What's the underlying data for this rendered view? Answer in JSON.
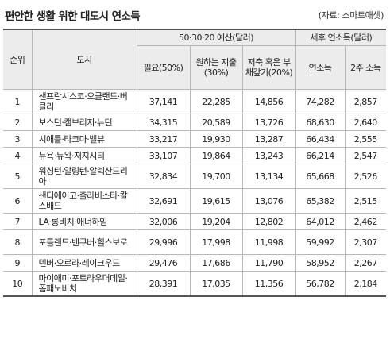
{
  "title": "편안한 생활 위한 대도시 연소득",
  "source": "(자료: 스마트애셋)",
  "headers": {
    "rank": "순위",
    "city": "도시",
    "group_budget": "50·30·20 예산(달러)",
    "group_income": "세후 연소득(달러)",
    "need": "필요(50%)",
    "want": "원하는 지출(30%)",
    "save": "저축 혹은 부채갚기(20%)",
    "annual": "연소득",
    "two_week": "2주 소득"
  },
  "rows": [
    {
      "rank": "1",
      "city": "샌프란시스코·오클랜드·버클리",
      "need": "37,141",
      "want": "22,285",
      "save": "14,856",
      "annual": "74,282",
      "two_week": "2,857"
    },
    {
      "rank": "2",
      "city": "보스턴·캠브리지·뉴턴",
      "need": "34,315",
      "want": "20,589",
      "save": "13,726",
      "annual": "68,630",
      "two_week": "2,640"
    },
    {
      "rank": "3",
      "city": "시애틀·타코마·벨뷰",
      "need": "33,217",
      "want": "19,930",
      "save": "13,287",
      "annual": "66,434",
      "two_week": "2,555"
    },
    {
      "rank": "4",
      "city": "뉴욕·뉴왁·저지시티",
      "need": "33,107",
      "want": "19,864",
      "save": "13,243",
      "annual": "66,214",
      "two_week": "2,547"
    },
    {
      "rank": "5",
      "city": "워싱턴·알링턴·알렉산드리아",
      "need": "32,834",
      "want": "19,700",
      "save": "13,134",
      "annual": "65,668",
      "two_week": "2,526"
    },
    {
      "rank": "6",
      "city": "샌디에이고·출라비스타·칼스배드",
      "need": "32,691",
      "want": "19,615",
      "save": "13,076",
      "annual": "65,382",
      "two_week": "2,515"
    },
    {
      "rank": "7",
      "city": "LA·롱비치·애너하임",
      "need": "32,006",
      "want": "19,204",
      "save": "12,802",
      "annual": "64,012",
      "two_week": "2,462"
    },
    {
      "rank": "8",
      "city": "포틀랜드·밴쿠버·힐스보로",
      "need": "29,996",
      "want": "17,998",
      "save": "11,998",
      "annual": "59,992",
      "two_week": "2,307"
    },
    {
      "rank": "9",
      "city": "덴버·오로라·레이크우드",
      "need": "29,476",
      "want": "17,686",
      "save": "11,790",
      "annual": "58,952",
      "two_week": "2,267"
    },
    {
      "rank": "10",
      "city": "마이애미·포트라우더데일·폼패노비치",
      "need": "28,391",
      "want": "17,035",
      "save": "11,356",
      "annual": "56,782",
      "two_week": "2,184"
    }
  ]
}
